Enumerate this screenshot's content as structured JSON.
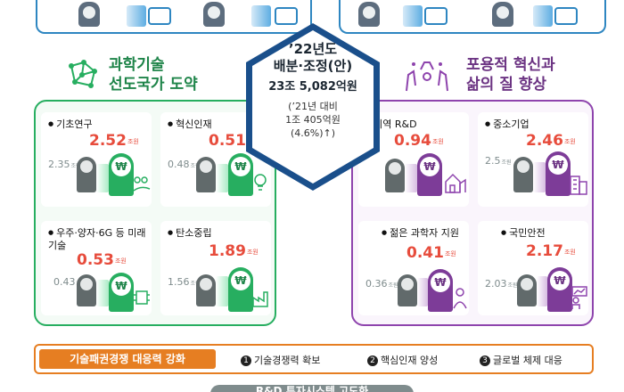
{
  "center": {
    "year": "’22년도",
    "title": "배분·조정(안)",
    "amount": "23조 5,082억원",
    "note_line1": "(’21년 대비",
    "note_line2": "1조 405억원",
    "note_line3": "(4.6%)↑)"
  },
  "left_section": {
    "title_line1": "과학기술",
    "title_line2": "선도국가 도약",
    "icon": "network-icon",
    "accent": "#27ae60",
    "cards": [
      {
        "name": "기초연구",
        "value": "2.52",
        "prev": "2.35",
        "unit": "조원",
        "icon": "plant-hand-icon"
      },
      {
        "name": "혁신인재",
        "value": "0.51",
        "prev": "0.48",
        "unit": "조원",
        "icon": "lightbulb-gear-icon"
      },
      {
        "name": "우주·양자·6G 등 미래기술",
        "value": "0.53",
        "prev": "0.43",
        "unit": "조원",
        "icon": "chip-icon"
      },
      {
        "name": "탄소중립",
        "value": "1.89",
        "prev": "1.56",
        "unit": "조원",
        "icon": "factory-plant-icon"
      }
    ]
  },
  "right_section": {
    "title_line1": "포용적 혁신과",
    "title_line2": "삶의 질 향상",
    "icon": "raised-hands-icon",
    "accent": "#8e44ad",
    "cards": [
      {
        "name": "지역 R&D",
        "value": "0.94",
        "prev": "",
        "unit": "조원",
        "icon": "houses-icon"
      },
      {
        "name": "중소기업",
        "value": "2.46",
        "prev": "2.5",
        "unit": "조원",
        "icon": "buildings-icon"
      },
      {
        "name": "젊은 과학자 지원",
        "value": "0.41",
        "prev": "0.36",
        "unit": "조원",
        "icon": "scientist-icon"
      },
      {
        "name": "국민안전",
        "value": "2.17",
        "prev": "2.03",
        "unit": "조원",
        "icon": "presenter-icon"
      }
    ]
  },
  "bottom": {
    "tag": "기술패권경쟁 대응력 강화",
    "items": [
      {
        "num": "1",
        "label": "기술경쟁력 확보"
      },
      {
        "num": "2",
        "label": "핵심인재 양성"
      },
      {
        "num": "3",
        "label": "글로벌 체제 대응"
      }
    ],
    "next_pill": "R&D 투자시스템 고도화"
  },
  "colors": {
    "value_red": "#e74c3c",
    "green": "#27ae60",
    "purple": "#8e44ad",
    "blue": "#2e86c1",
    "orange": "#e67e22"
  }
}
